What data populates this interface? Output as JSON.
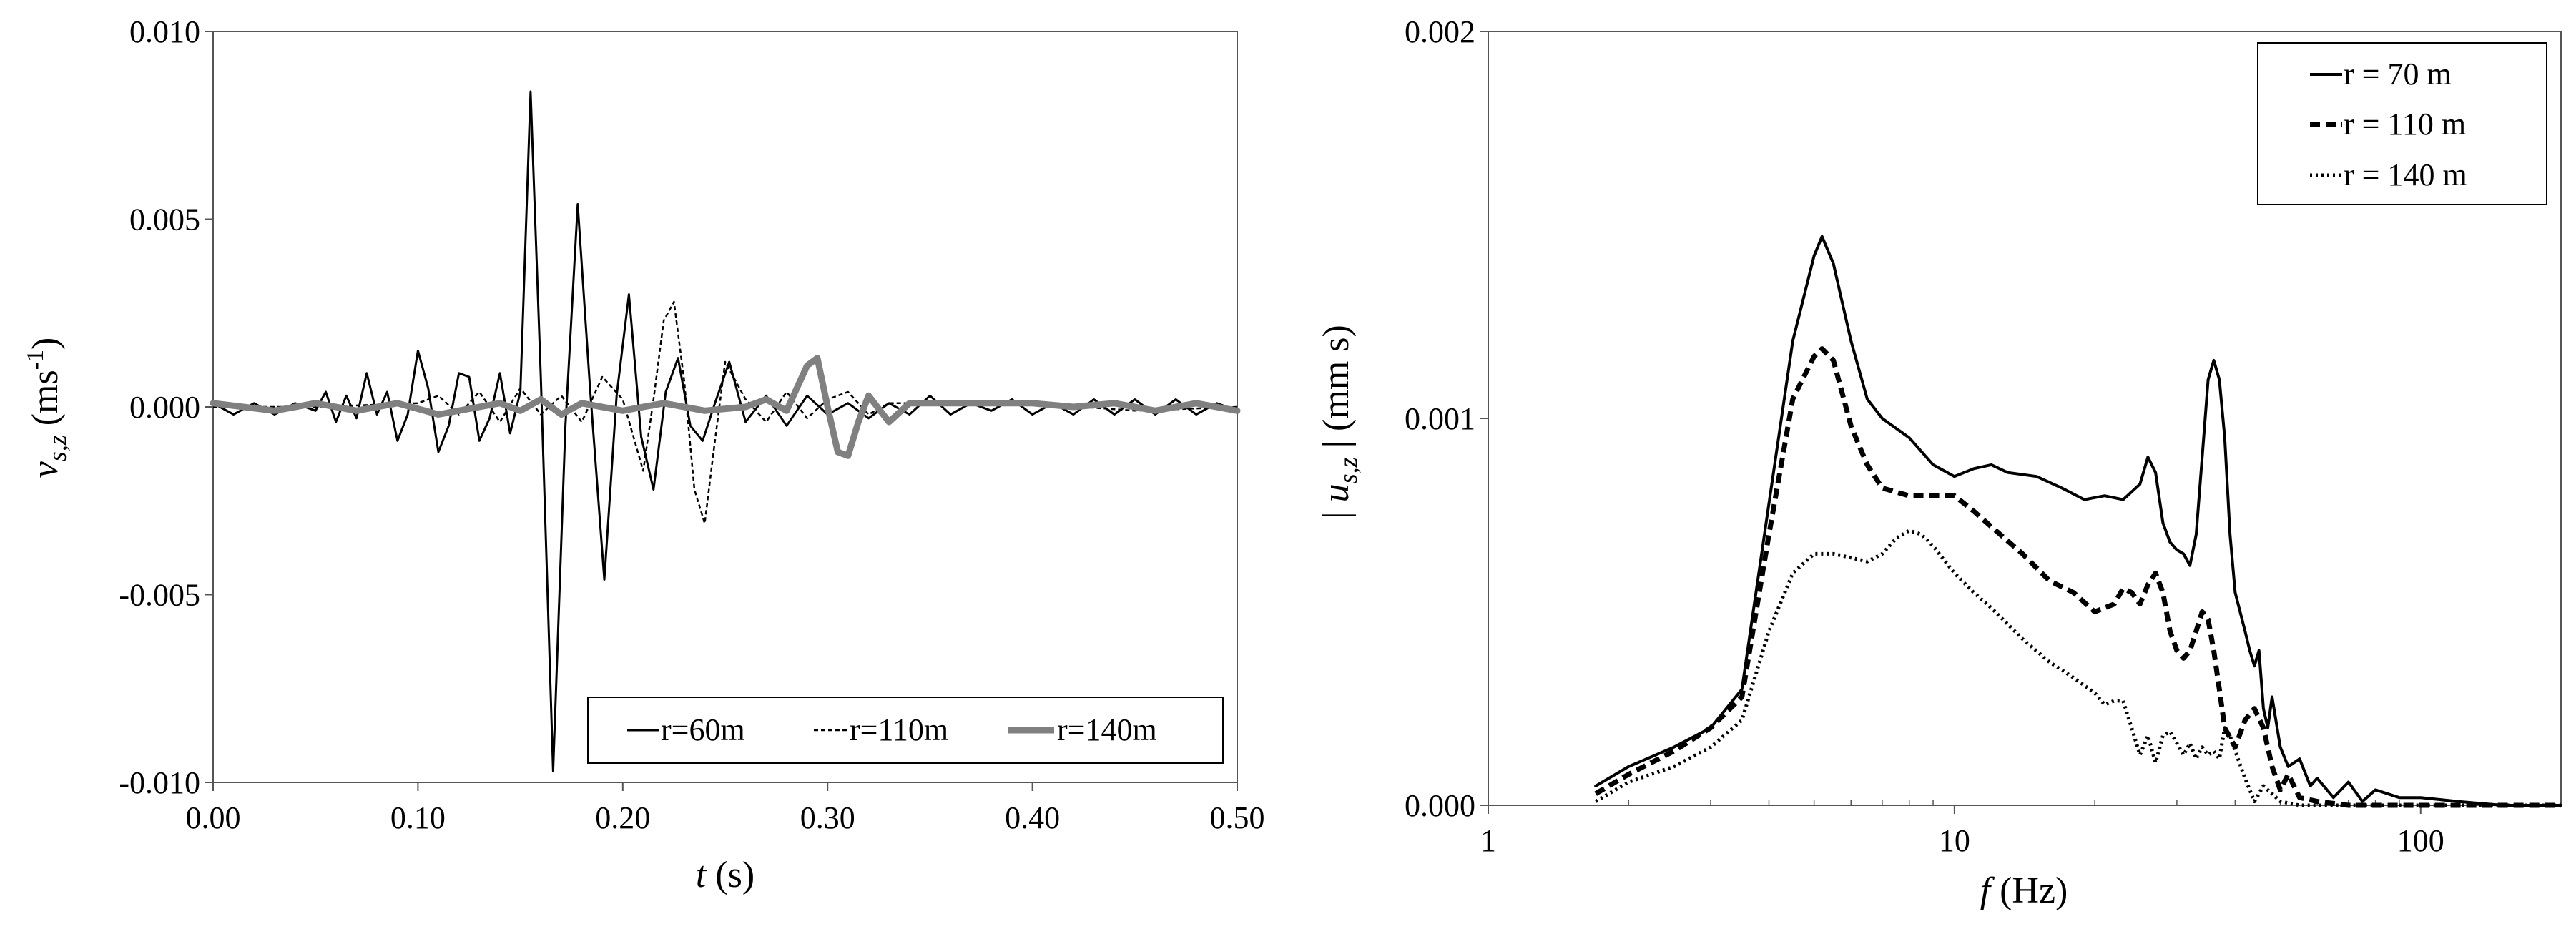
{
  "chart_data": [
    {
      "type": "line",
      "xlabel": {
        "var": "t",
        "unit": " (s)"
      },
      "ylabel": {
        "var": "v",
        "sub": "s,z",
        "unit_pre": " (ms",
        "unit_sup": "-1",
        "unit_post": ")"
      },
      "xlim": [
        0,
        0.5
      ],
      "ylim": [
        -0.01,
        0.01
      ],
      "xticks": [
        0,
        0.1,
        0.2,
        0.3,
        0.4,
        0.5
      ],
      "xtick_labels": [
        "0.00",
        "0.10",
        "0.20",
        "0.30",
        "0.40",
        "0.50"
      ],
      "yticks": [
        -0.01,
        -0.005,
        0,
        0.005,
        0.01
      ],
      "ytick_labels": [
        "-0.010",
        "-0.005",
        "0.000",
        "0.005",
        "0.010"
      ],
      "grid": false,
      "legend": {
        "placement": "bottom-right",
        "orientation": "horizontal"
      },
      "series": [
        {
          "name": "r=60m",
          "color": "#000000",
          "style": "solid",
          "x": [
            0,
            0.01,
            0.02,
            0.03,
            0.04,
            0.05,
            0.055,
            0.06,
            0.065,
            0.07,
            0.075,
            0.08,
            0.085,
            0.09,
            0.095,
            0.1,
            0.105,
            0.11,
            0.115,
            0.12,
            0.125,
            0.13,
            0.135,
            0.14,
            0.145,
            0.15,
            0.155,
            0.16,
            0.166,
            0.172,
            0.178,
            0.184,
            0.191,
            0.197,
            0.203,
            0.209,
            0.215,
            0.221,
            0.227,
            0.233,
            0.239,
            0.245,
            0.252,
            0.26,
            0.27,
            0.28,
            0.29,
            0.3,
            0.31,
            0.32,
            0.33,
            0.34,
            0.35,
            0.36,
            0.37,
            0.38,
            0.39,
            0.4,
            0.41,
            0.42,
            0.43,
            0.44,
            0.45,
            0.46,
            0.47,
            0.48,
            0.49,
            0.5
          ],
          "y": [
            0.0001,
            -0.0002,
            0.0001,
            -0.0002,
            0.0001,
            -0.0001,
            0.0004,
            -0.0004,
            0.0003,
            -0.0003,
            0.0009,
            -0.0002,
            0.0004,
            -0.0009,
            -0.0002,
            0.0015,
            0.0005,
            -0.0012,
            -0.0005,
            0.0009,
            0.0008,
            -0.0009,
            -0.0003,
            0.0009,
            -0.0007,
            0.0004,
            0.0084,
            0.0008,
            -0.0097,
            -0.0005,
            0.0054,
            0.0005,
            -0.0046,
            0.0003,
            0.003,
            -0.0008,
            -0.0022,
            0.0004,
            0.0013,
            -0.0005,
            -0.0009,
            0.0001,
            0.0012,
            -0.0004,
            0.0003,
            -0.0005,
            0.0003,
            -0.0002,
            0.0001,
            -0.0003,
            0.0001,
            -0.0002,
            0.0003,
            -0.0002,
            0.0001,
            -0.0001,
            0.0002,
            -0.0002,
            0.0001,
            -0.0002,
            0.0002,
            -0.0002,
            0.0002,
            -0.0002,
            0.0002,
            -0.0002,
            0.0001,
            -0.0001
          ]
        },
        {
          "name": "r=110m",
          "color": "#000000",
          "style": "dashed",
          "x": [
            0,
            0.05,
            0.1,
            0.11,
            0.12,
            0.13,
            0.14,
            0.15,
            0.16,
            0.17,
            0.18,
            0.19,
            0.2,
            0.21,
            0.215,
            0.22,
            0.225,
            0.23,
            0.235,
            0.24,
            0.245,
            0.25,
            0.26,
            0.27,
            0.28,
            0.29,
            0.3,
            0.31,
            0.32,
            0.33,
            0.35,
            0.4,
            0.45,
            0.5
          ],
          "y": [
            0,
            0,
            0.0001,
            0.0003,
            -0.0002,
            0.0004,
            -0.0004,
            0.0005,
            -0.0002,
            0.0003,
            -0.0004,
            0.0008,
            0.0002,
            -0.0017,
            0.0002,
            0.0023,
            0.0028,
            0.0007,
            -0.0022,
            -0.0031,
            -0.0009,
            0.0012,
            0.0002,
            -0.0004,
            0.0004,
            -0.0003,
            0.0002,
            0.0004,
            -0.0002,
            0.0001,
            0.0001,
            0.0001,
            -0.0001,
            0
          ]
        },
        {
          "name": "r=140m",
          "color": "#808080",
          "style": "solid-thick",
          "x": [
            0,
            0.03,
            0.05,
            0.07,
            0.09,
            0.11,
            0.13,
            0.14,
            0.15,
            0.16,
            0.17,
            0.18,
            0.2,
            0.22,
            0.24,
            0.26,
            0.27,
            0.28,
            0.29,
            0.295,
            0.3,
            0.305,
            0.31,
            0.315,
            0.32,
            0.33,
            0.34,
            0.36,
            0.38,
            0.4,
            0.42,
            0.44,
            0.46,
            0.48,
            0.5
          ],
          "y": [
            0.0001,
            -0.0001,
            0.0001,
            -0.0001,
            0.0001,
            -0.0002,
            0,
            0.0001,
            -0.0001,
            0.0002,
            -0.0002,
            0.0001,
            -0.0001,
            0.0001,
            -0.0001,
            0,
            0.0002,
            -0.0001,
            0.0011,
            0.0013,
            0,
            -0.0012,
            -0.0013,
            -0.0004,
            0.0003,
            -0.0004,
            0.0001,
            0.0001,
            0.0001,
            0.0001,
            0,
            0.0001,
            -0.0001,
            0.0001,
            -0.0001
          ]
        }
      ]
    },
    {
      "type": "line",
      "xlabel": {
        "var": "f",
        "unit": " (Hz)"
      },
      "ylabel": {
        "bar_open": "| ",
        "var": "u",
        "sub": "s,z",
        "bar_close": " |",
        "unit": " (mm s)"
      },
      "xscale": "log",
      "xlim": [
        1,
        200
      ],
      "ylim": [
        0,
        0.002
      ],
      "xticks": [
        1,
        10,
        100
      ],
      "xtick_labels": [
        "1",
        "10",
        "100"
      ],
      "yticks": [
        0,
        0.001,
        0.002
      ],
      "ytick_labels": [
        "0.000",
        "0.001",
        "0.002"
      ],
      "grid": false,
      "legend": {
        "placement": "top-right",
        "orientation": "vertical"
      },
      "series": [
        {
          "name": "r = 70 m",
          "color": "#000000",
          "style": "solid",
          "x": [
            1.7,
            2,
            2.5,
            3,
            3.5,
            4,
            4.5,
            5,
            5.2,
            5.5,
            6,
            6.5,
            7,
            8,
            9,
            10,
            11,
            12,
            13,
            15,
            17,
            19,
            21,
            23,
            25,
            26,
            27,
            28,
            29,
            30,
            31,
            32,
            33,
            34,
            35,
            36,
            37,
            38,
            39,
            40,
            41,
            42,
            43,
            44,
            45,
            46,
            47,
            48,
            50,
            52,
            55,
            58,
            60,
            65,
            70,
            75,
            80,
            90,
            100,
            120,
            150,
            200
          ],
          "y": [
            5e-05,
            0.0001,
            0.00015,
            0.0002,
            0.0003,
            0.00078,
            0.0012,
            0.00142,
            0.00147,
            0.0014,
            0.0012,
            0.00105,
            0.001,
            0.00095,
            0.00088,
            0.00085,
            0.00087,
            0.00088,
            0.00086,
            0.00085,
            0.00082,
            0.00079,
            0.0008,
            0.00079,
            0.00083,
            0.0009,
            0.00086,
            0.00073,
            0.00068,
            0.00066,
            0.00065,
            0.00062,
            0.0007,
            0.0009,
            0.0011,
            0.00115,
            0.0011,
            0.00095,
            0.0007,
            0.00055,
            0.0005,
            0.00045,
            0.0004,
            0.00036,
            0.0004,
            0.00025,
            0.0002,
            0.00028,
            0.00015,
            0.0001,
            0.00012,
            5e-05,
            7e-05,
            2e-05,
            6e-05,
            1e-05,
            4e-05,
            2e-05,
            2e-05,
            1e-05,
            0,
            0
          ]
        },
        {
          "name": "r = 110 m",
          "color": "#000000",
          "style": "dashed",
          "x": [
            1.7,
            2,
            2.5,
            3,
            3.5,
            4,
            4.5,
            5,
            5.2,
            5.5,
            6,
            6.5,
            7,
            8,
            9,
            10,
            11,
            12,
            14,
            16,
            18,
            20,
            22,
            23,
            24,
            25,
            26,
            27,
            28,
            29,
            30,
            31,
            32,
            33,
            34,
            35,
            36,
            37,
            38,
            40,
            42,
            44,
            46,
            48,
            50,
            52,
            55,
            60,
            70,
            80,
            100,
            150,
            200
          ],
          "y": [
            3e-05,
            8e-05,
            0.00014,
            0.0002,
            0.00028,
            0.0007,
            0.00105,
            0.00116,
            0.00118,
            0.00115,
            0.00098,
            0.00088,
            0.00082,
            0.0008,
            0.0008,
            0.0008,
            0.00076,
            0.00072,
            0.00065,
            0.00058,
            0.00055,
            0.0005,
            0.00052,
            0.00056,
            0.00055,
            0.00052,
            0.00057,
            0.0006,
            0.00055,
            0.00045,
            0.0004,
            0.00038,
            0.0004,
            0.00045,
            0.0005,
            0.00048,
            0.0004,
            0.0003,
            0.0002,
            0.00015,
            0.00022,
            0.00025,
            0.0002,
            0.0001,
            4e-05,
            8e-05,
            2e-05,
            1e-05,
            0,
            0,
            0,
            0,
            0
          ]
        },
        {
          "name": "r = 140 m",
          "color": "#000000",
          "style": "dotted",
          "x": [
            1.7,
            2,
            2.5,
            3,
            3.5,
            4,
            4.5,
            5,
            5.5,
            6,
            6.5,
            7,
            7.5,
            8,
            8.5,
            9,
            10,
            11,
            12,
            14,
            16,
            18,
            20,
            21,
            22,
            23,
            24,
            25,
            26,
            27,
            28,
            29,
            30,
            31,
            32,
            33,
            34,
            35,
            36,
            37,
            38,
            39,
            40,
            42,
            44,
            46,
            48,
            50,
            55,
            60,
            70,
            100,
            200
          ],
          "y": [
            1e-05,
            6e-05,
            0.0001,
            0.00015,
            0.00022,
            0.00045,
            0.0006,
            0.00065,
            0.00065,
            0.00064,
            0.00063,
            0.00065,
            0.00069,
            0.00071,
            0.0007,
            0.00067,
            0.0006,
            0.00055,
            0.00051,
            0.00043,
            0.00037,
            0.00033,
            0.00029,
            0.00026,
            0.00027,
            0.00027,
            0.0002,
            0.00013,
            0.00018,
            0.00011,
            0.00018,
            0.00019,
            0.00016,
            0.00013,
            0.00016,
            0.00012,
            0.00015,
            0.00013,
            0.00014,
            0.00012,
            0.0002,
            0.00018,
            0.00014,
            7e-05,
            1e-05,
            5e-05,
            3e-05,
            1e-05,
            0,
            0,
            0,
            0,
            0
          ]
        }
      ]
    }
  ]
}
